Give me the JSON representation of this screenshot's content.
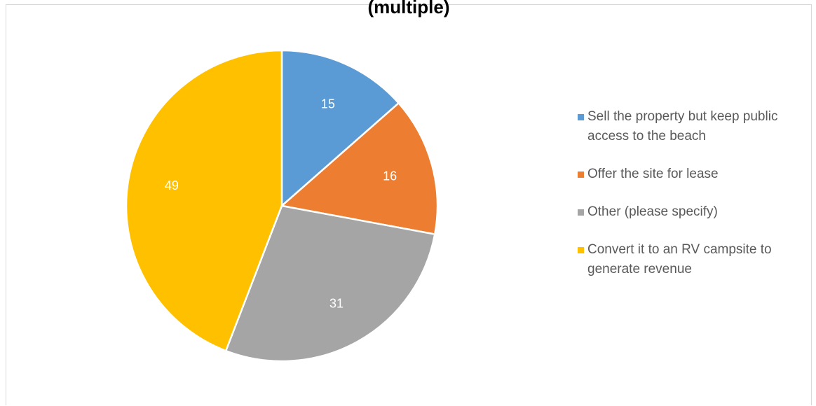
{
  "chart_data": {
    "type": "pie",
    "title": "(multiple)",
    "categories": [
      "Sell the property but keep public access to the beach",
      "Offer the site for lease",
      "Other (please specify)",
      "Convert it to an RV campsite to generate revenue"
    ],
    "values": [
      15,
      16,
      31,
      49
    ],
    "colors": [
      "#5b9bd5",
      "#ed7d31",
      "#a5a5a5",
      "#ffc000"
    ],
    "legend_position": "right",
    "start_angle": "12 o'clock, clockwise"
  },
  "legend": {
    "items": [
      {
        "label": "Sell the property but keep public access to the beach",
        "color": "#5b9bd5"
      },
      {
        "label": "Offer the site for lease",
        "color": "#ed7d31"
      },
      {
        "label": "Other (please specify)",
        "color": "#a5a5a5"
      },
      {
        "label": "Convert it to an RV campsite to generate revenue",
        "color": "#ffc000"
      }
    ]
  }
}
